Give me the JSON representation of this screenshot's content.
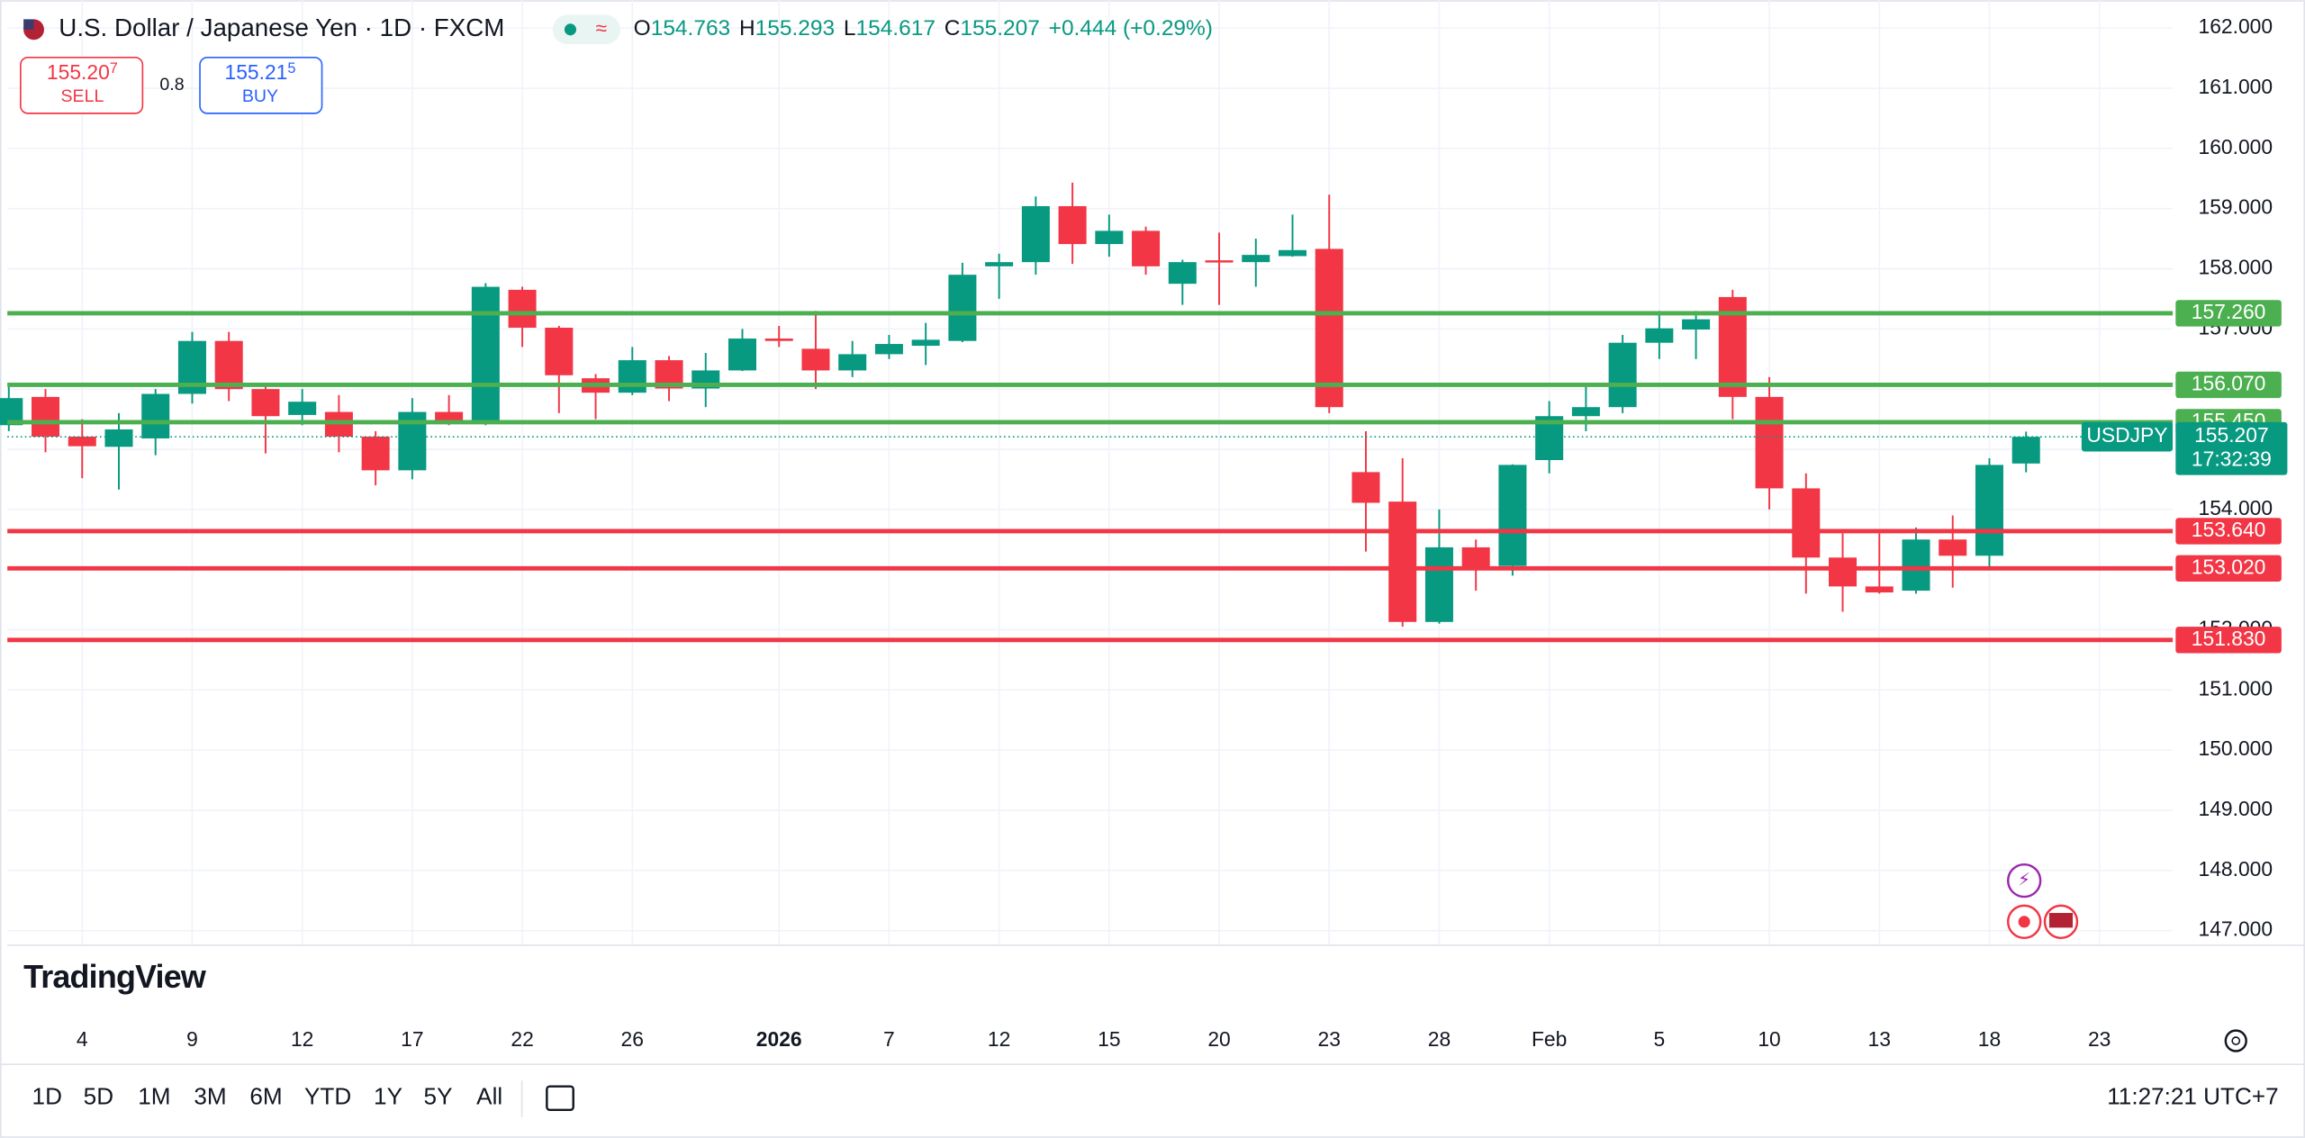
{
  "chart_data": {
    "type": "candlestick",
    "title": "U.S. Dollar / Japanese Yen · 1D · FXCM",
    "header": {
      "o_label": "O",
      "open": "154.763",
      "h_label": "H",
      "high": "155.293",
      "l_label": "L",
      "low": "154.617",
      "c_label": "C",
      "close": "155.207",
      "change": "+0.444 (+0.29%)"
    },
    "trade": {
      "sell_price": "155.20",
      "sell_pip": "7",
      "sell_label": "SELL",
      "spread": "0.8",
      "buy_price": "155.21",
      "buy_pip": "5",
      "buy_label": "BUY"
    },
    "categories": [
      null,
      null,
      "4",
      null,
      null,
      "9",
      null,
      null,
      "12",
      null,
      null,
      "17",
      null,
      null,
      "22",
      null,
      null,
      "26",
      null,
      null,
      null,
      "2026",
      null,
      null,
      "7",
      null,
      null,
      "12",
      null,
      null,
      "15",
      null,
      null,
      "20",
      null,
      null,
      "23",
      null,
      null,
      "28",
      null,
      null,
      "Feb",
      null,
      null,
      "5",
      null,
      null,
      "10",
      null,
      null,
      "13",
      null,
      null,
      "18",
      null,
      null,
      "23"
    ],
    "series": [
      {
        "name": "USDJPY",
        "up_color": "#089981",
        "down_color": "#f23645",
        "open": [
          155.4,
          155.87,
          155.21,
          155.04,
          155.18,
          155.92,
          156.8,
          156.0,
          155.57,
          155.62,
          155.21,
          154.65,
          155.62,
          155.43,
          157.65,
          157.02,
          156.18,
          155.94,
          156.48,
          156.01,
          156.31,
          156.84,
          156.67,
          156.31,
          156.58,
          156.72,
          156.8,
          158.04,
          158.11,
          159.04,
          158.41,
          158.63,
          157.75,
          158.14,
          158.11,
          158.21,
          158.33,
          154.62,
          154.13,
          152.13,
          153.37,
          153.06,
          154.82,
          155.55,
          155.7,
          156.77,
          156.99,
          157.53,
          155.87,
          154.35,
          153.2,
          152.72,
          152.65,
          153.5,
          153.23,
          154.763,
          null,
          null
        ],
        "high": [
          156.1,
          156.0,
          155.5,
          155.6,
          156.0,
          156.95,
          156.95,
          156.1,
          156.0,
          155.9,
          155.3,
          155.85,
          155.9,
          157.76,
          157.7,
          157.05,
          156.25,
          156.7,
          156.55,
          156.6,
          157.0,
          157.05,
          157.3,
          156.8,
          156.9,
          157.1,
          158.1,
          158.25,
          159.2,
          159.43,
          158.9,
          158.7,
          158.15,
          158.6,
          158.5,
          158.9,
          159.23,
          155.3,
          154.85,
          154.0,
          153.5,
          154.75,
          155.8,
          156.1,
          156.9,
          157.3,
          157.3,
          157.65,
          156.2,
          154.6,
          153.6,
          153.6,
          153.7,
          153.9,
          154.85,
          155.293,
          null,
          null
        ],
        "low": [
          155.3,
          154.95,
          154.52,
          154.33,
          154.9,
          155.76,
          155.8,
          154.93,
          155.4,
          154.95,
          154.4,
          154.5,
          155.4,
          155.4,
          156.7,
          155.6,
          155.5,
          155.9,
          155.8,
          155.7,
          156.3,
          156.7,
          156.0,
          156.2,
          156.5,
          156.4,
          156.78,
          157.5,
          157.9,
          158.08,
          158.2,
          157.9,
          157.4,
          157.4,
          157.7,
          158.2,
          155.6,
          153.3,
          152.05,
          152.1,
          152.65,
          152.9,
          154.6,
          155.3,
          155.6,
          156.5,
          156.5,
          155.5,
          154.0,
          152.6,
          152.3,
          152.6,
          152.6,
          152.7,
          153.0,
          154.617,
          null,
          null
        ],
        "close": [
          155.85,
          155.21,
          155.05,
          155.33,
          155.92,
          156.8,
          156.0,
          155.55,
          155.79,
          155.21,
          154.65,
          155.62,
          155.43,
          157.7,
          157.02,
          156.23,
          155.94,
          156.48,
          156.01,
          156.31,
          156.84,
          156.8,
          156.31,
          156.58,
          156.75,
          156.82,
          157.9,
          158.11,
          159.04,
          158.41,
          158.63,
          158.04,
          158.11,
          158.11,
          158.23,
          158.31,
          155.7,
          154.11,
          152.13,
          153.37,
          153.03,
          154.74,
          155.55,
          155.7,
          156.77,
          157.01,
          157.16,
          155.87,
          154.35,
          153.2,
          152.72,
          152.62,
          153.5,
          153.23,
          154.74,
          155.207,
          null,
          null
        ]
      }
    ],
    "ylim": [
      146.756,
      162.464
    ],
    "yticks": [
      {
        "value": 162,
        "label": "162.000"
      },
      {
        "value": 161,
        "label": "161.000"
      },
      {
        "value": 160,
        "label": "160.000"
      },
      {
        "value": 159,
        "label": "159.000"
      },
      {
        "value": 158,
        "label": "158.000"
      },
      {
        "value": 157,
        "label": "157.000"
      },
      {
        "value": 156,
        "label": "156.000"
      },
      {
        "value": 155,
        "label": "155.000"
      },
      {
        "value": 154,
        "label": "154.000"
      },
      {
        "value": 153,
        "label": "153.000"
      },
      {
        "value": 152,
        "label": "152.000"
      },
      {
        "value": 151,
        "label": "151.000"
      },
      {
        "value": 150,
        "label": "150.000"
      },
      {
        "value": 149,
        "label": "149.000"
      },
      {
        "value": 148,
        "label": "148.000"
      },
      {
        "value": 147,
        "label": "147.000"
      }
    ],
    "grid": true,
    "hlines": [
      {
        "value": 157.26,
        "label": "157.260",
        "color": "#4caf50"
      },
      {
        "value": 156.07,
        "label": "156.070",
        "color": "#4caf50"
      },
      {
        "value": 155.45,
        "label": "155.450",
        "color": "#4caf50"
      },
      {
        "value": 153.64,
        "label": "153.640",
        "color": "#f23645"
      },
      {
        "value": 153.02,
        "label": "153.020",
        "color": "#f23645"
      },
      {
        "value": 151.83,
        "label": "151.830",
        "color": "#f23645"
      }
    ],
    "last_price": {
      "value": 155.207,
      "label": "155.207",
      "countdown": "17:32:39",
      "color": "#089981"
    }
  },
  "branding": {
    "logo": "TradingView"
  },
  "toolbar": {
    "ranges": [
      "1D",
      "5D",
      "1M",
      "3M",
      "6M",
      "YTD",
      "1Y",
      "5Y",
      "All"
    ],
    "clock": "11:27:21 UTC+7"
  }
}
